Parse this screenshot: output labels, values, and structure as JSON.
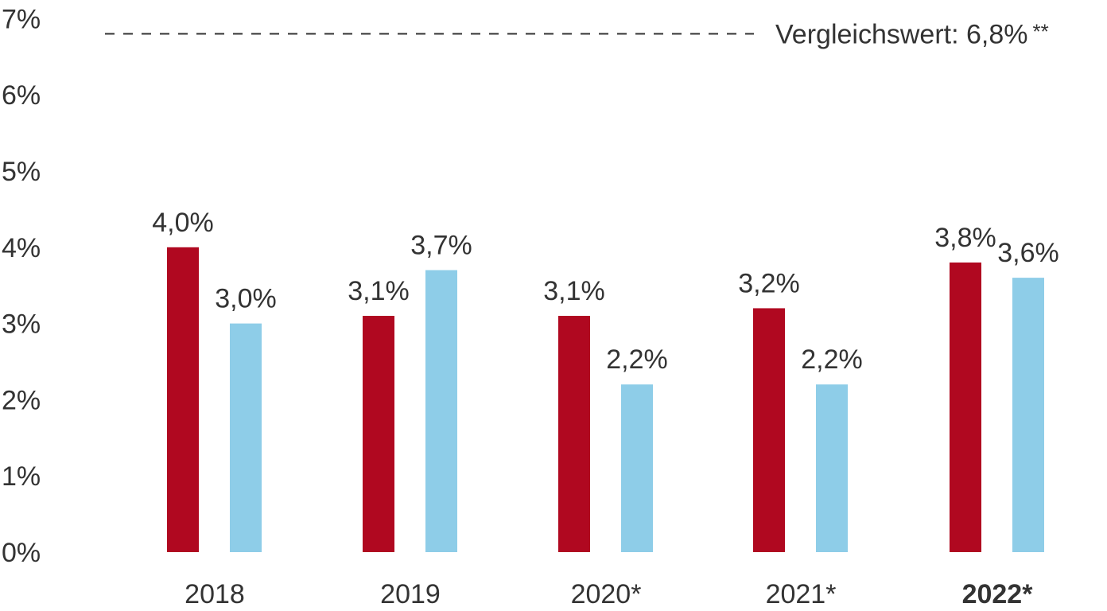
{
  "chart_data": {
    "type": "bar",
    "categories": [
      "2018",
      "2019",
      "2020*",
      "2021*",
      "2022*"
    ],
    "highlight_category": "2022*",
    "series": [
      {
        "values": [
          4.0,
          3.1,
          3.1,
          3.2,
          3.8
        ],
        "labels": [
          "4,0%",
          "3,1%",
          "3,1%",
          "3,2%",
          "3,8%"
        ],
        "color": "#b00820"
      },
      {
        "values": [
          3.0,
          3.7,
          2.2,
          2.2,
          3.6
        ],
        "labels": [
          "3,0%",
          "3,7%",
          "2,2%",
          "2,2%",
          "3,6%"
        ],
        "color": "#8ecde8"
      }
    ],
    "y_ticks": [
      "0%",
      "1%",
      "2%",
      "3%",
      "4%",
      "5%",
      "6%",
      "7%"
    ],
    "ylim": [
      0,
      7
    ],
    "grid": false,
    "reference_line": {
      "value": 6.8,
      "label": "Vergleichswert: 6,8%",
      "marker": "**",
      "style": "dashed"
    }
  }
}
